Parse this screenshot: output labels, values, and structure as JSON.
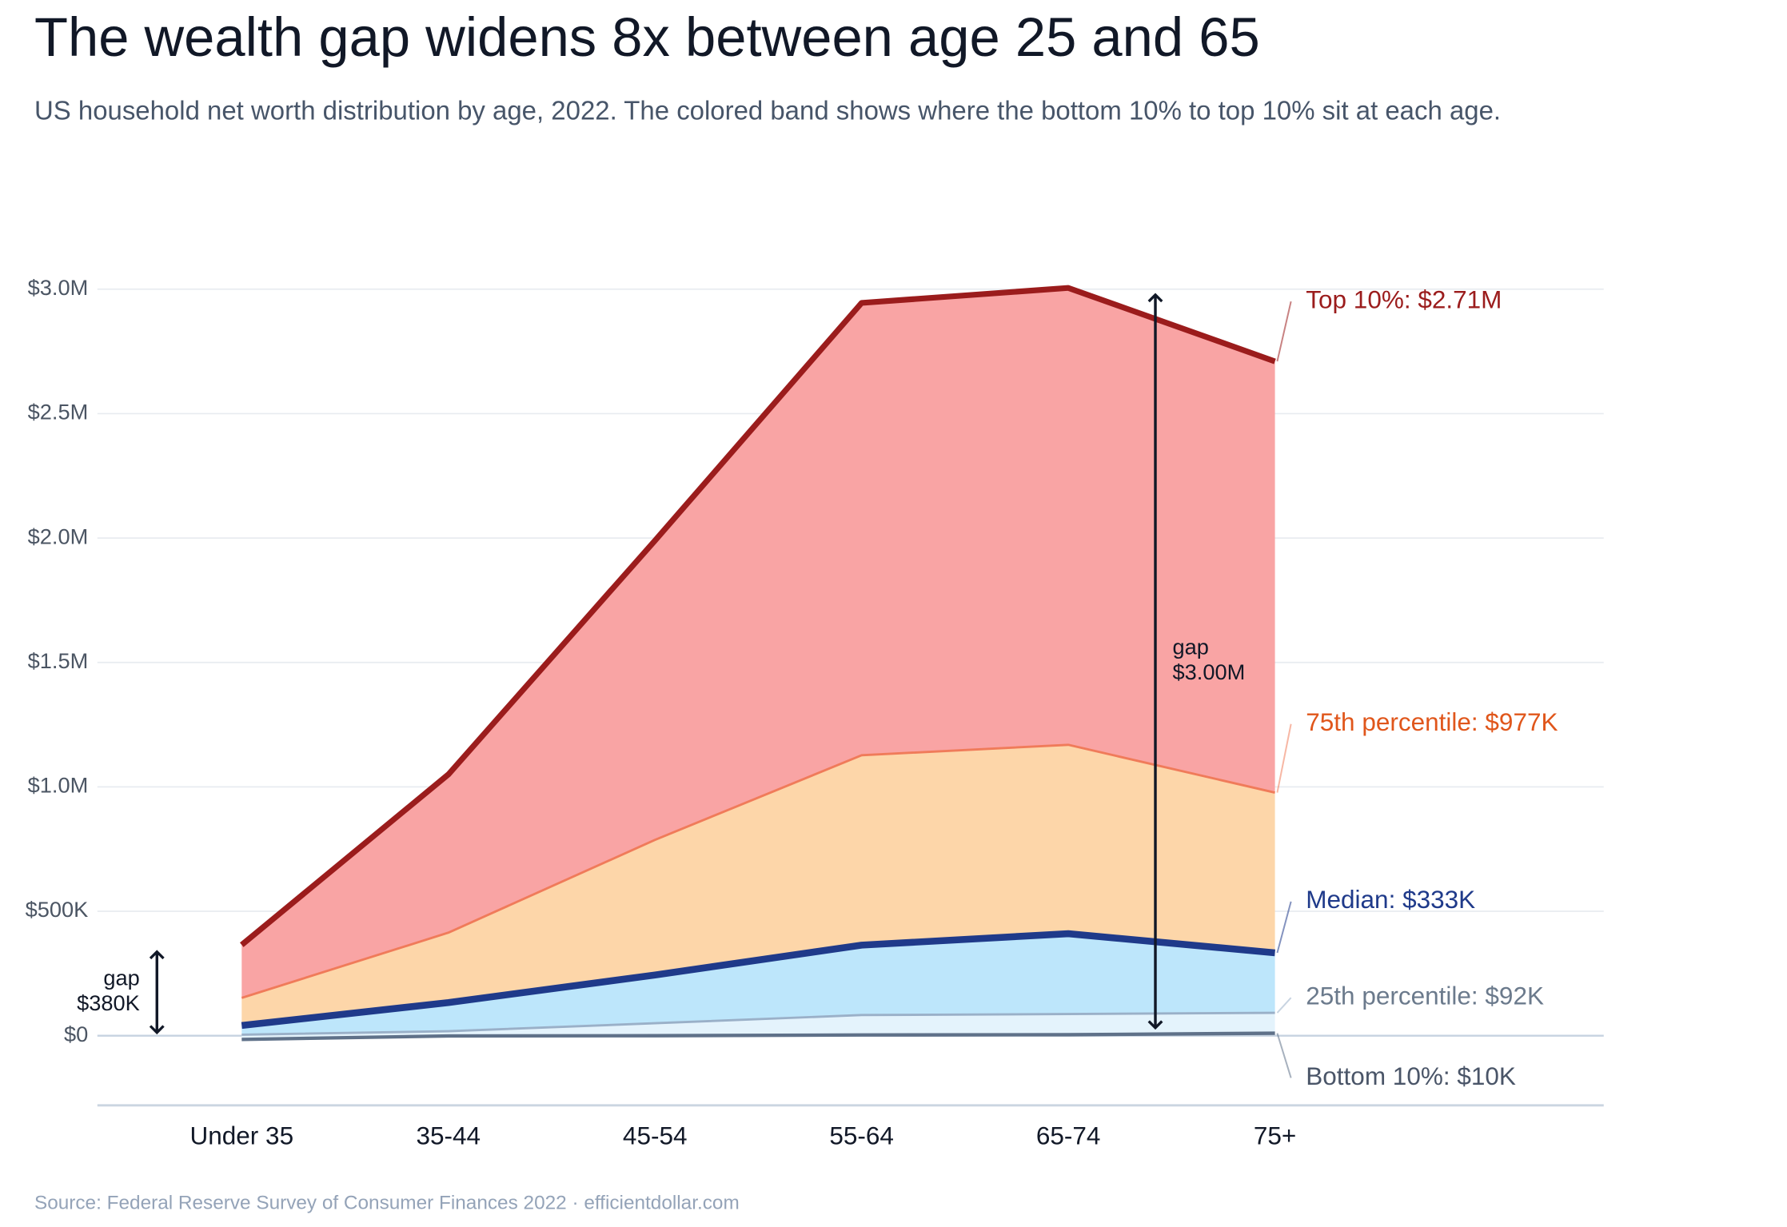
{
  "chart_data": {
    "type": "band",
    "title": "The wealth gap widens 8x between age 25 and 65",
    "subtitle": "US household net worth distribution by age, 2022. The colored band shows where the bottom 10% to top 10% sit at each age.",
    "source": "Source: Federal Reserve Survey of Consumer Finances 2022  ·  efficientdollar.com",
    "categories": [
      "Under 35",
      "35-44",
      "45-54",
      "55-64",
      "65-74",
      "75+"
    ],
    "series": [
      {
        "label": "Top 10%: $2.71M",
        "color": "#9b1c1c",
        "fill": "#f9a4a4",
        "label_color": "#9b1c1c",
        "width": 5,
        "values": [
          0.365,
          1.05,
          1.99,
          2.945,
          3.005,
          2.71
        ]
      },
      {
        "label": "75th percentile: $977K",
        "color": "#f07b5a",
        "fill": "#fdd6a9",
        "label_color": "#e0561b",
        "width": 2,
        "values": [
          0.152,
          0.414,
          0.787,
          1.127,
          1.169,
          0.977
        ]
      },
      {
        "label": "Median: $333K",
        "color": "#1f3a8a",
        "fill": "#bde6fb",
        "label_color": "#1f3a8a",
        "width": 6,
        "values": [
          0.041,
          0.133,
          0.244,
          0.364,
          0.41,
          0.333
        ]
      },
      {
        "label": "25th percentile: $92K",
        "color": "#9ab0c8",
        "fill": "#e4f3fc",
        "label_color": "#6b7a8c",
        "width": 2,
        "values": [
          0.004,
          0.018,
          0.05,
          0.083,
          0.087,
          0.092
        ]
      },
      {
        "label": "Bottom 10%: $10K",
        "color": "#5f7189",
        "fill": null,
        "label_color": "#4a5568",
        "width": 3,
        "values": [
          -0.015,
          -0.001,
          0.0,
          0.003,
          0.004,
          0.01
        ]
      }
    ],
    "annotations": [
      {
        "lines": [
          "gap",
          "$380K"
        ],
        "category": 0
      },
      {
        "lines": [
          "gap",
          "$3.00M"
        ],
        "category": 4
      }
    ],
    "ylim": [
      -0.28,
      3.25
    ],
    "yticks": [
      {
        "value": 0,
        "label": "$0"
      },
      {
        "value": 0.5,
        "label": "$500K"
      },
      {
        "value": 1,
        "label": "$1.0M"
      },
      {
        "value": 1.5,
        "label": "$1.5M"
      },
      {
        "value": 2,
        "label": "$2.0M"
      },
      {
        "value": 2.5,
        "label": "$2.5M"
      },
      {
        "value": 3,
        "label": "$3.0M"
      }
    ],
    "grid": true
  }
}
